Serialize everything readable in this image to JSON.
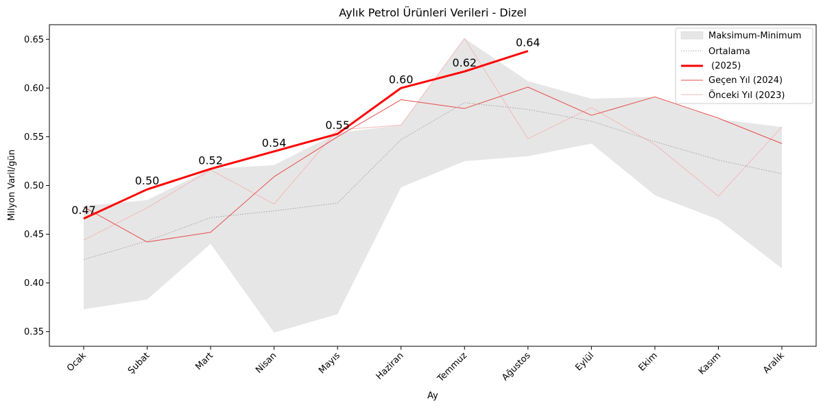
{
  "chart_data": {
    "type": "line",
    "title": "Aylık Petrol Ürünleri Verileri - Dizel",
    "xlabel": "Ay",
    "ylabel": "Milyon Varil/gün",
    "ylim": [
      0.335,
      0.665
    ],
    "yticks": [
      0.35,
      0.4,
      0.45,
      0.5,
      0.55,
      0.6,
      0.65
    ],
    "ytick_labels": [
      "0.35",
      "0.40",
      "0.45",
      "0.50",
      "0.55",
      "0.60",
      "0.65"
    ],
    "categories": [
      "Ocak",
      "Şubat",
      "Mart",
      "Nisan",
      "Mayıs",
      "Haziran",
      "Temmuz",
      "Ağustos",
      "Eylül",
      "Ekim",
      "Kasım",
      "Aralık"
    ],
    "band": {
      "name": "Maksimum-Minimum",
      "color": "#e6e6e6",
      "max": [
        0.479,
        0.485,
        0.517,
        0.521,
        0.554,
        0.562,
        0.651,
        0.607,
        0.589,
        0.591,
        0.568,
        0.56
      ],
      "min": [
        0.373,
        0.383,
        0.44,
        0.349,
        0.368,
        0.498,
        0.525,
        0.53,
        0.543,
        0.49,
        0.465,
        0.415
      ]
    },
    "series": [
      {
        "name": "Ortalama",
        "color": "#a0a0a0",
        "style": "dotted",
        "values": [
          0.424,
          0.443,
          0.467,
          0.474,
          0.482,
          0.547,
          0.585,
          0.578,
          0.566,
          0.545,
          0.526,
          0.512
        ]
      },
      {
        "name": " (2025)",
        "color": "#ff0000",
        "style": "thick",
        "values": [
          0.466,
          0.496,
          0.517,
          0.535,
          0.553,
          0.6,
          0.617,
          0.638,
          null,
          null,
          null,
          null
        ],
        "data_labels": [
          "0.47",
          "0.50",
          "0.52",
          "0.54",
          "0.55",
          "0.60",
          "0.62",
          "0.64"
        ]
      },
      {
        "name": "Geçen Yıl (2024)",
        "color": "#e84a4a",
        "style": "thin",
        "values": [
          0.478,
          0.442,
          0.452,
          0.509,
          0.55,
          0.588,
          0.579,
          0.601,
          0.572,
          0.591,
          0.569,
          0.543
        ]
      },
      {
        "name": "Önceki Yıl (2023)",
        "color": "#f5b8b8",
        "style": "faint",
        "values": [
          0.444,
          0.477,
          0.516,
          0.481,
          0.557,
          0.562,
          0.651,
          0.548,
          0.58,
          0.542,
          0.489,
          0.56
        ]
      }
    ],
    "legend_position": "top-right"
  }
}
